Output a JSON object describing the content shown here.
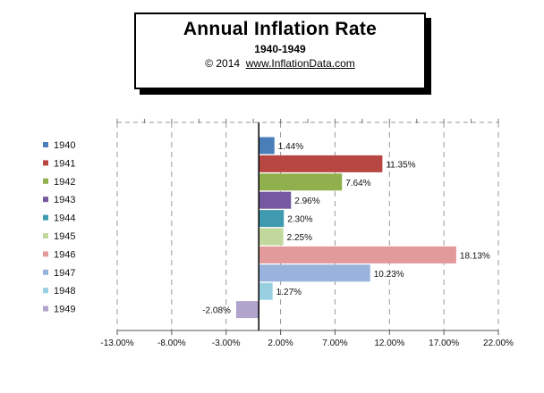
{
  "header": {
    "title": "Annual  Inflation Rate",
    "subtitle": "1940-1949",
    "copyright": "© 2014",
    "link": "www.InflationData.com"
  },
  "chart_data": {
    "type": "bar",
    "orientation": "horizontal",
    "categories": [
      "1940",
      "1941",
      "1942",
      "1943",
      "1944",
      "1945",
      "1946",
      "1947",
      "1948",
      "1949"
    ],
    "values": [
      1.44,
      11.35,
      7.64,
      2.96,
      2.3,
      2.25,
      18.13,
      10.23,
      1.27,
      -2.08
    ],
    "value_labels": [
      "1.44%",
      "11.35%",
      "7.64%",
      "2.96%",
      "2.30%",
      "2.25%",
      "18.13%",
      "10.23%",
      "1.27%",
      "-2.08%"
    ],
    "colors": [
      "#4a7eb8",
      "#b84744",
      "#8fb04c",
      "#7658a0",
      "#3f9ab0",
      "#c2d79b",
      "#e29a9a",
      "#98b4dc",
      "#98d0e2",
      "#b0a4cc"
    ],
    "x_ticks": [
      -13,
      -8,
      -3,
      2,
      7,
      12,
      17,
      22
    ],
    "x_tick_labels": [
      "-13.00%",
      "-8.00%",
      "-3.00%",
      "2.00%",
      "7.00%",
      "12.00%",
      "17.00%",
      "22.00%"
    ],
    "xlim": [
      -13,
      22
    ],
    "grid": true,
    "legend": "left"
  }
}
